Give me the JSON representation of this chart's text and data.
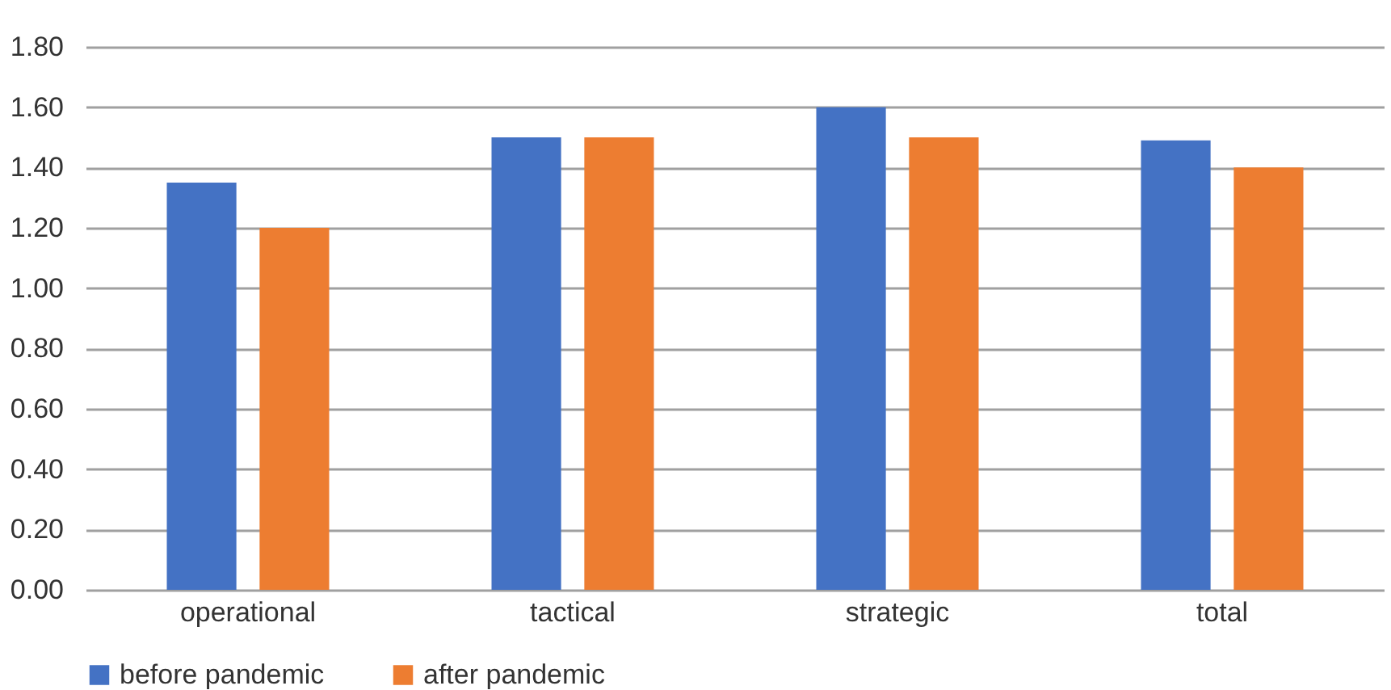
{
  "chart_data": {
    "type": "bar",
    "categories": [
      "operational",
      "tactical",
      "strategic",
      "total"
    ],
    "series": [
      {
        "name": "before pandemic",
        "color": "#4472c4",
        "values": [
          1.35,
          1.5,
          1.6,
          1.49
        ]
      },
      {
        "name": "after pandemic",
        "color": "#ed7d31",
        "values": [
          1.2,
          1.5,
          1.5,
          1.4
        ]
      }
    ],
    "ylim": [
      0,
      1.8
    ],
    "yticks": [
      {
        "value": 0,
        "label": "0.00"
      },
      {
        "value": 0.2,
        "label": "0.20"
      },
      {
        "value": 0.4,
        "label": "0.40"
      },
      {
        "value": 0.6,
        "label": "0.60"
      },
      {
        "value": 0.8,
        "label": "0.80"
      },
      {
        "value": 1,
        "label": "1.00"
      },
      {
        "value": 1.2,
        "label": "1.20"
      },
      {
        "value": 1.4,
        "label": "1.40"
      },
      {
        "value": 1.6,
        "label": "1.60"
      },
      {
        "value": 1.8,
        "label": "1.80"
      }
    ],
    "grid": "y",
    "legend": "bottom"
  }
}
